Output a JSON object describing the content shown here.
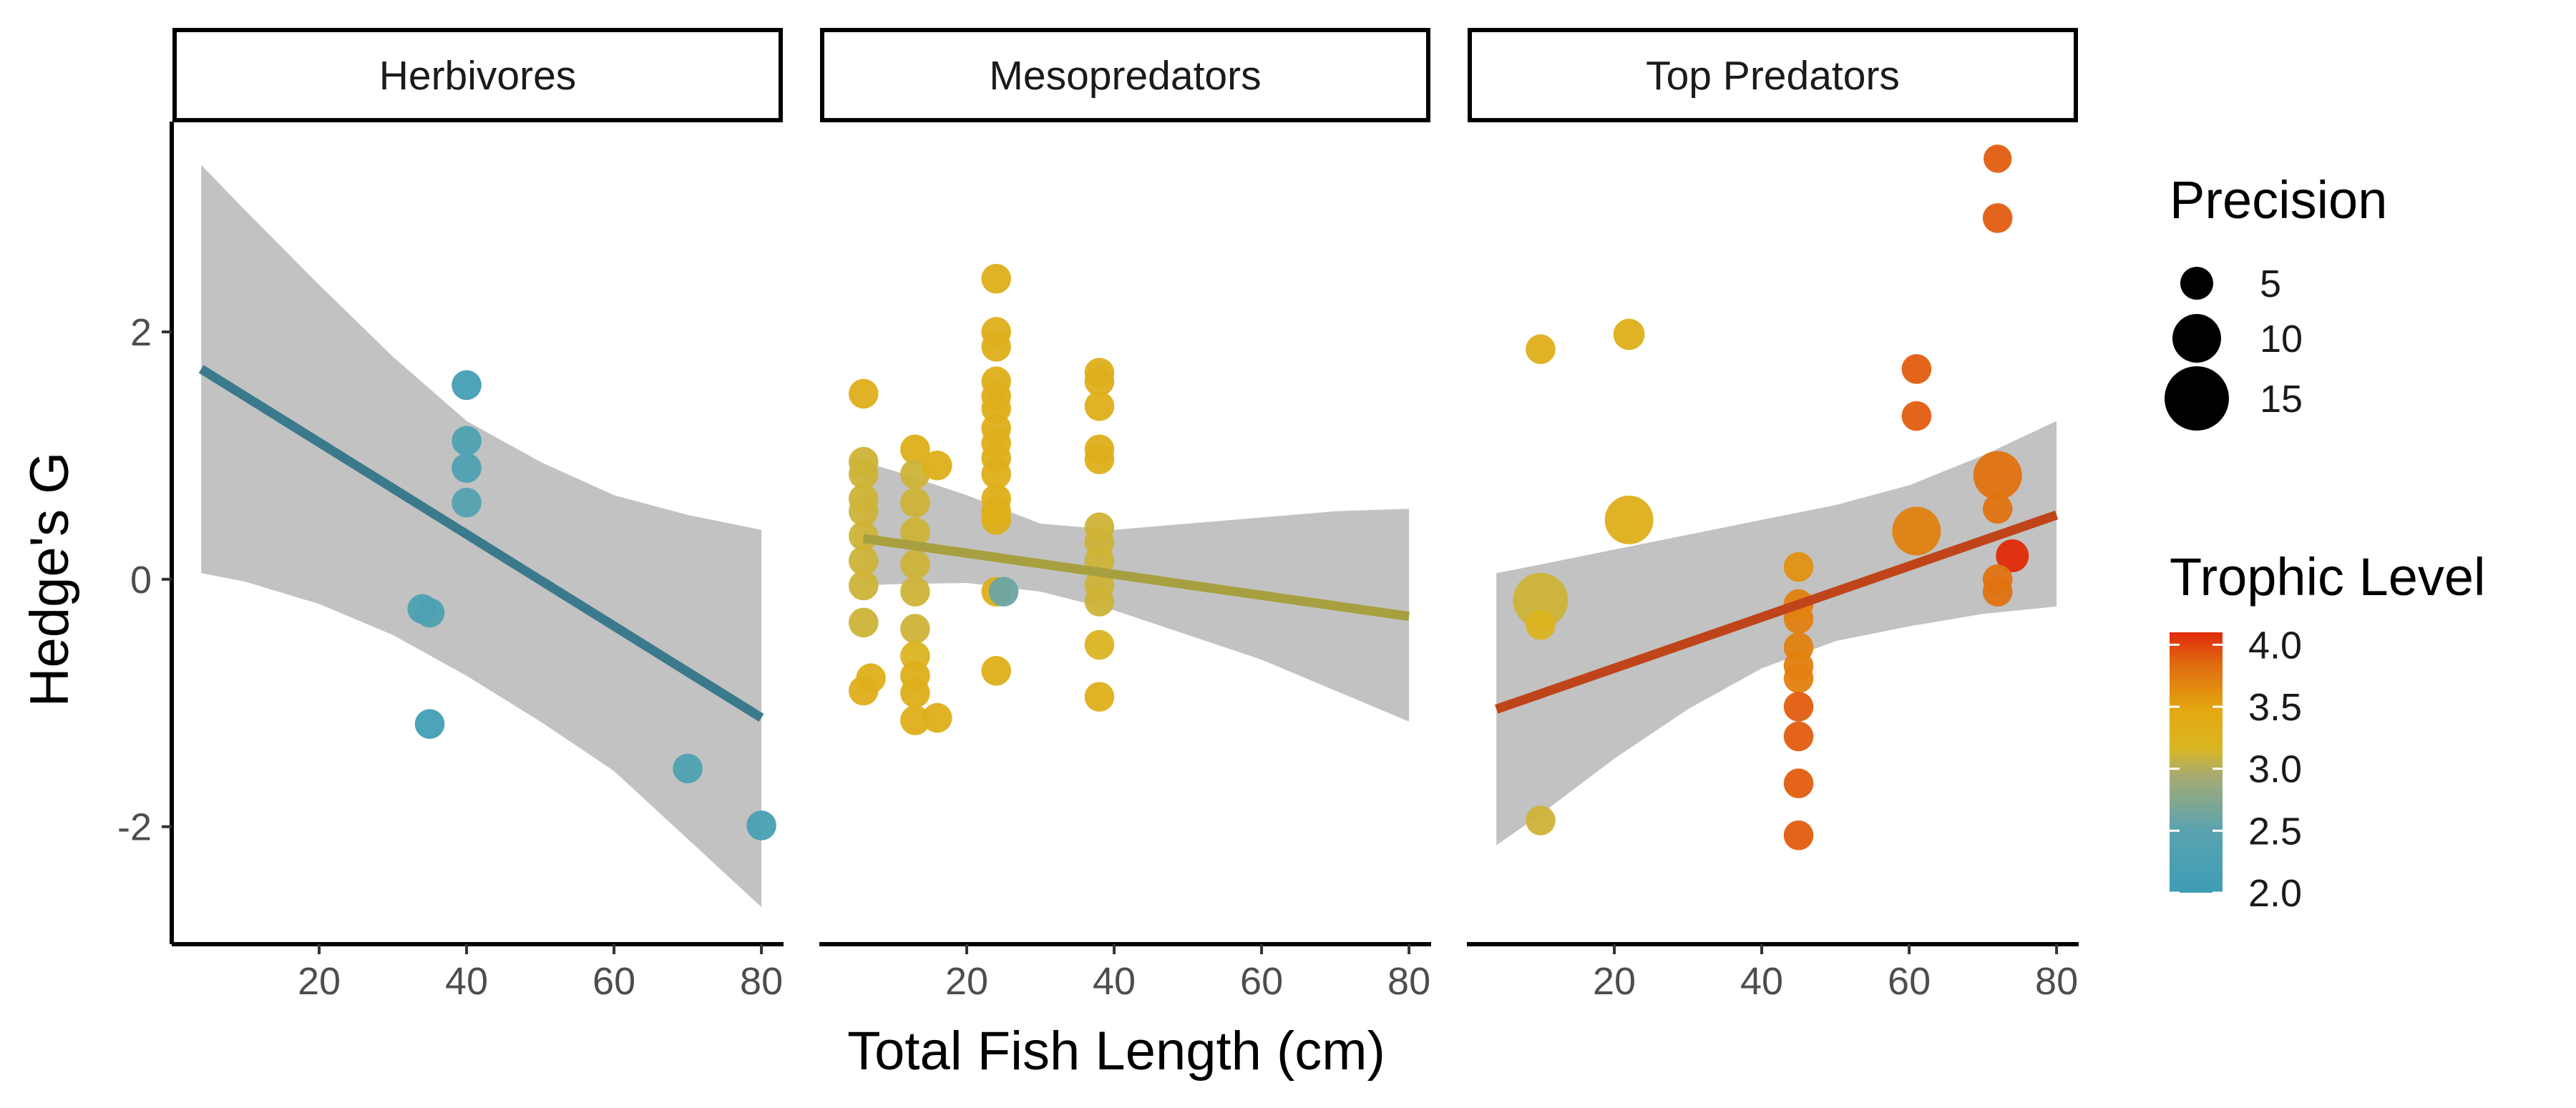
{
  "chart_data": {
    "type": "scatter",
    "xlabel": "Total Fish Length (cm)",
    "ylabel": "Hedge's G",
    "xlim": [
      0,
      83
    ],
    "ylim": [
      -2.95,
      3.7
    ],
    "x_ticks": [
      20,
      40,
      60,
      80
    ],
    "x_tick_labels": [
      "20",
      "40",
      "60",
      "80"
    ],
    "y_ticks": [
      -2,
      0,
      2
    ],
    "y_tick_labels": [
      "-2",
      "0",
      "2"
    ],
    "grid": false,
    "legend_position": "right",
    "size_legend": {
      "title": "Precision",
      "entries": [
        {
          "label": "5",
          "value": 5
        },
        {
          "label": "10",
          "value": 10
        },
        {
          "label": "15",
          "value": 15
        }
      ]
    },
    "color_legend": {
      "title": "Trophic Level",
      "min": 2.0,
      "max": 4.1,
      "ticks": [
        4.0,
        3.5,
        3.0,
        2.5,
        2.0
      ],
      "tick_labels": [
        "4.0",
        "3.5",
        "3.0",
        "2.5",
        "2.0"
      ],
      "colors": [
        "#e03010",
        "#e05a10",
        "#e2a010",
        "#e3b414",
        "#c8b430",
        "#8fa85a",
        "#5aa3b0",
        "#3d9db5"
      ]
    },
    "panels": [
      {
        "name": "Herbivores",
        "trend": {
          "x": [
            4,
            80
          ],
          "y": [
            1.7,
            -1.12
          ],
          "color": "#3a7a8c"
        },
        "band": {
          "x": [
            4,
            10,
            20,
            30,
            40,
            50,
            60,
            70,
            80
          ],
          "lower": [
            0.05,
            -0.02,
            -0.2,
            -0.45,
            -0.78,
            -1.15,
            -1.55,
            -2.1,
            -2.65
          ],
          "upper": [
            3.35,
            2.98,
            2.38,
            1.8,
            1.28,
            0.95,
            0.68,
            0.52,
            0.4
          ]
        },
        "points": [
          {
            "x": 40,
            "y": 1.57,
            "precision": 4,
            "trophic": 2.1
          },
          {
            "x": 40,
            "y": 1.12,
            "precision": 4,
            "trophic": 2.3
          },
          {
            "x": 40,
            "y": 0.9,
            "precision": 4,
            "trophic": 2.3
          },
          {
            "x": 40,
            "y": 0.62,
            "precision": 4,
            "trophic": 2.4
          },
          {
            "x": 34,
            "y": -0.24,
            "precision": 4,
            "trophic": 2.3
          },
          {
            "x": 35,
            "y": -0.27,
            "precision": 4,
            "trophic": 2.3
          },
          {
            "x": 35,
            "y": -1.17,
            "precision": 4,
            "trophic": 2.1
          },
          {
            "x": 70,
            "y": -1.53,
            "precision": 4,
            "trophic": 2.3
          },
          {
            "x": 80,
            "y": -1.99,
            "precision": 4,
            "trophic": 2.2
          }
        ]
      },
      {
        "name": "Mesopredators",
        "trend": {
          "x": [
            6,
            80
          ],
          "y": [
            0.33,
            -0.3
          ],
          "color": "#a8a040"
        },
        "band": {
          "x": [
            6,
            10,
            20,
            30,
            40,
            50,
            60,
            70,
            80
          ],
          "lower": [
            -0.05,
            -0.04,
            -0.03,
            -0.1,
            -0.25,
            -0.45,
            -0.65,
            -0.9,
            -1.15
          ],
          "upper": [
            0.95,
            0.88,
            0.68,
            0.45,
            0.4,
            0.45,
            0.5,
            0.55,
            0.57
          ]
        },
        "points": [
          {
            "x": 6,
            "y": 1.5,
            "precision": 4,
            "trophic": 3.3
          },
          {
            "x": 6,
            "y": 0.95,
            "precision": 4,
            "trophic": 3.1
          },
          {
            "x": 6,
            "y": 0.85,
            "precision": 4,
            "trophic": 3.1
          },
          {
            "x": 6,
            "y": 0.65,
            "precision": 4,
            "trophic": 3.1
          },
          {
            "x": 6,
            "y": 0.55,
            "precision": 4,
            "trophic": 3.1
          },
          {
            "x": 6,
            "y": 0.35,
            "precision": 4,
            "trophic": 3.1
          },
          {
            "x": 6,
            "y": 0.15,
            "precision": 4,
            "trophic": 3.1
          },
          {
            "x": 6,
            "y": -0.05,
            "precision": 4,
            "trophic": 3.1
          },
          {
            "x": 6,
            "y": -0.35,
            "precision": 4,
            "trophic": 3.1
          },
          {
            "x": 6,
            "y": -0.9,
            "precision": 4,
            "trophic": 3.3
          },
          {
            "x": 7,
            "y": -0.8,
            "precision": 4,
            "trophic": 3.3
          },
          {
            "x": 13,
            "y": 1.05,
            "precision": 4,
            "trophic": 3.3
          },
          {
            "x": 13,
            "y": 0.85,
            "precision": 4,
            "trophic": 3.1
          },
          {
            "x": 13,
            "y": 0.62,
            "precision": 4,
            "trophic": 3.1
          },
          {
            "x": 13,
            "y": 0.38,
            "precision": 4,
            "trophic": 3.1
          },
          {
            "x": 13,
            "y": 0.12,
            "precision": 4,
            "trophic": 3.1
          },
          {
            "x": 13,
            "y": -0.1,
            "precision": 4,
            "trophic": 3.1
          },
          {
            "x": 13,
            "y": -0.4,
            "precision": 4,
            "trophic": 3.1
          },
          {
            "x": 13,
            "y": -0.62,
            "precision": 4,
            "trophic": 3.2
          },
          {
            "x": 13,
            "y": -0.78,
            "precision": 4,
            "trophic": 3.3
          },
          {
            "x": 13,
            "y": -0.92,
            "precision": 4,
            "trophic": 3.3
          },
          {
            "x": 13,
            "y": -1.14,
            "precision": 4,
            "trophic": 3.3
          },
          {
            "x": 16,
            "y": 0.92,
            "precision": 4,
            "trophic": 3.3
          },
          {
            "x": 16,
            "y": -1.12,
            "precision": 4,
            "trophic": 3.3
          },
          {
            "x": 24,
            "y": 2.43,
            "precision": 4,
            "trophic": 3.3
          },
          {
            "x": 24,
            "y": 2.0,
            "precision": 4,
            "trophic": 3.3
          },
          {
            "x": 24,
            "y": 1.88,
            "precision": 4,
            "trophic": 3.3
          },
          {
            "x": 24,
            "y": 1.6,
            "precision": 4,
            "trophic": 3.3
          },
          {
            "x": 24,
            "y": 1.48,
            "precision": 4,
            "trophic": 3.3
          },
          {
            "x": 24,
            "y": 1.38,
            "precision": 4,
            "trophic": 3.3
          },
          {
            "x": 24,
            "y": 1.22,
            "precision": 4,
            "trophic": 3.3
          },
          {
            "x": 24,
            "y": 1.1,
            "precision": 4,
            "trophic": 3.3
          },
          {
            "x": 24,
            "y": 0.98,
            "precision": 4,
            "trophic": 3.3
          },
          {
            "x": 24,
            "y": 0.85,
            "precision": 4,
            "trophic": 3.3
          },
          {
            "x": 24,
            "y": 0.65,
            "precision": 4,
            "trophic": 3.3
          },
          {
            "x": 24,
            "y": 0.55,
            "precision": 4,
            "trophic": 3.3
          },
          {
            "x": 24,
            "y": 0.48,
            "precision": 4,
            "trophic": 3.3
          },
          {
            "x": 24,
            "y": -0.1,
            "precision": 4,
            "trophic": 3.3
          },
          {
            "x": 24,
            "y": -0.74,
            "precision": 4,
            "trophic": 3.3
          },
          {
            "x": 25,
            "y": -0.1,
            "precision": 4,
            "trophic": 2.6
          },
          {
            "x": 38,
            "y": 1.67,
            "precision": 4,
            "trophic": 3.3
          },
          {
            "x": 38,
            "y": 1.6,
            "precision": 4,
            "trophic": 3.3
          },
          {
            "x": 38,
            "y": 1.4,
            "precision": 4,
            "trophic": 3.3
          },
          {
            "x": 38,
            "y": 1.05,
            "precision": 4,
            "trophic": 3.3
          },
          {
            "x": 38,
            "y": 0.97,
            "precision": 4,
            "trophic": 3.3
          },
          {
            "x": 38,
            "y": 0.42,
            "precision": 4,
            "trophic": 3.1
          },
          {
            "x": 38,
            "y": 0.3,
            "precision": 4,
            "trophic": 3.1
          },
          {
            "x": 38,
            "y": 0.15,
            "precision": 4,
            "trophic": 3.1
          },
          {
            "x": 38,
            "y": -0.05,
            "precision": 4,
            "trophic": 3.1
          },
          {
            "x": 38,
            "y": -0.18,
            "precision": 4,
            "trophic": 3.1
          },
          {
            "x": 38,
            "y": -0.53,
            "precision": 4,
            "trophic": 3.2
          },
          {
            "x": 38,
            "y": -0.95,
            "precision": 4,
            "trophic": 3.3
          }
        ]
      },
      {
        "name": "Top Predators",
        "trend": {
          "x": [
            4,
            80
          ],
          "y": [
            -1.05,
            0.52
          ],
          "color": "#c0441a"
        },
        "band": {
          "x": [
            4,
            10,
            20,
            30,
            40,
            50,
            60,
            70,
            80
          ],
          "lower": [
            -2.15,
            -1.9,
            -1.45,
            -1.05,
            -0.72,
            -0.5,
            -0.38,
            -0.28,
            -0.22
          ],
          "upper": [
            0.05,
            0.12,
            0.24,
            0.36,
            0.48,
            0.6,
            0.76,
            1.0,
            1.28
          ]
        },
        "points": [
          {
            "x": 10,
            "y": 1.86,
            "precision": 4,
            "trophic": 3.3
          },
          {
            "x": 22,
            "y": 1.98,
            "precision": 4.5,
            "trophic": 3.3
          },
          {
            "x": 22,
            "y": 0.48,
            "precision": 10,
            "trophic": 3.3
          },
          {
            "x": 10,
            "y": -0.17,
            "precision": 12,
            "trophic": 3.1
          },
          {
            "x": 10,
            "y": -0.37,
            "precision": 4,
            "trophic": 3.2
          },
          {
            "x": 10,
            "y": -1.95,
            "precision": 4,
            "trophic": 3.1
          },
          {
            "x": 45,
            "y": 0.1,
            "precision": 4,
            "trophic": 3.6
          },
          {
            "x": 45,
            "y": -0.2,
            "precision": 4,
            "trophic": 3.7
          },
          {
            "x": 45,
            "y": -0.32,
            "precision": 4,
            "trophic": 3.7
          },
          {
            "x": 45,
            "y": -0.55,
            "precision": 4,
            "trophic": 3.7
          },
          {
            "x": 45,
            "y": -0.7,
            "precision": 4,
            "trophic": 3.7
          },
          {
            "x": 45,
            "y": -0.8,
            "precision": 4,
            "trophic": 3.7
          },
          {
            "x": 45,
            "y": -1.03,
            "precision": 4,
            "trophic": 3.9
          },
          {
            "x": 45,
            "y": -1.27,
            "precision": 4,
            "trophic": 3.9
          },
          {
            "x": 45,
            "y": -1.65,
            "precision": 4,
            "trophic": 3.9
          },
          {
            "x": 45,
            "y": -2.07,
            "precision": 4,
            "trophic": 3.9
          },
          {
            "x": 61,
            "y": 1.7,
            "precision": 4,
            "trophic": 3.9
          },
          {
            "x": 61,
            "y": 1.32,
            "precision": 4,
            "trophic": 3.9
          },
          {
            "x": 61,
            "y": 0.39,
            "precision": 10,
            "trophic": 3.7
          },
          {
            "x": 72,
            "y": 3.4,
            "precision": 3.5,
            "trophic": 3.9
          },
          {
            "x": 72,
            "y": 2.92,
            "precision": 4,
            "trophic": 3.9
          },
          {
            "x": 72,
            "y": 0.84,
            "precision": 10,
            "trophic": 3.8
          },
          {
            "x": 72,
            "y": 0.57,
            "precision": 4,
            "trophic": 3.8
          },
          {
            "x": 72,
            "y": 0.0,
            "precision": 4,
            "trophic": 3.8
          },
          {
            "x": 72,
            "y": -0.1,
            "precision": 4,
            "trophic": 3.8
          },
          {
            "x": 74,
            "y": 0.19,
            "precision": 5,
            "trophic": 4.1
          }
        ]
      }
    ]
  }
}
